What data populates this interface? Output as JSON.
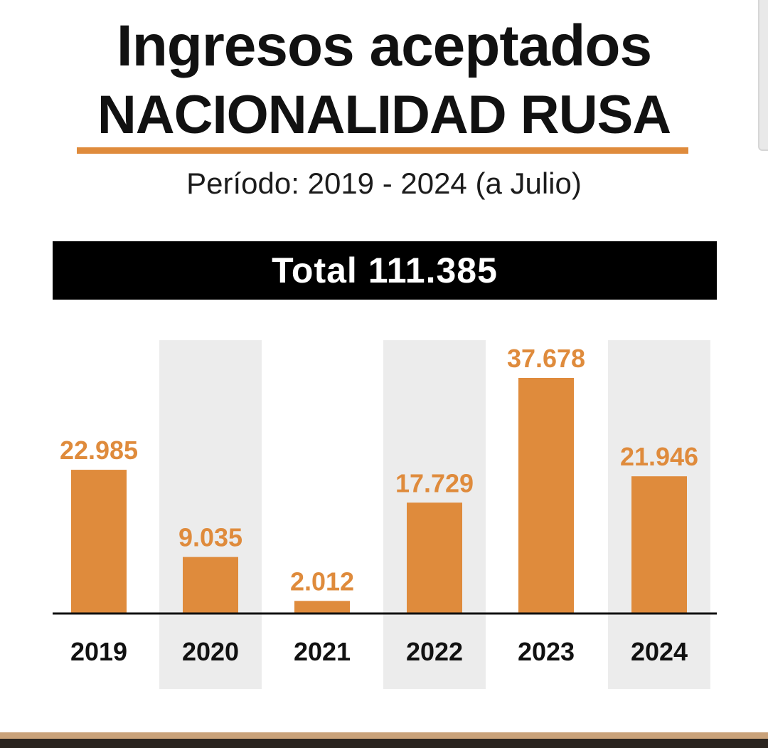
{
  "header": {
    "title_line1": "Ingresos aceptados",
    "title_line2": "NACIONALIDAD RUSA",
    "subtitle": "Período: 2019 - 2024 (a Julio)",
    "total_label": "Total 111.385"
  },
  "colors": {
    "accent": "#df8b3c",
    "bar": "#df8b3c",
    "label": "#df8b3c",
    "band": "#ececec",
    "axis": "#111111",
    "text": "#111111"
  },
  "chart_data": {
    "type": "bar",
    "categories": [
      "2019",
      "2020",
      "2021",
      "2022",
      "2023",
      "2024"
    ],
    "values": [
      22985,
      9035,
      2012,
      17729,
      37678,
      21946
    ],
    "value_labels": [
      "22.985",
      "9.035",
      "2.012",
      "17.729",
      "37.678",
      "21.946"
    ],
    "title": "Ingresos aceptados NACIONALIDAD RUSA",
    "subtitle": "Período: 2019 - 2024 (a Julio)",
    "xlabel": "",
    "ylabel": "",
    "ylim": [
      0,
      37678
    ],
    "grid": false,
    "legend": "none",
    "alternating_bands": [
      "2020",
      "2022",
      "2024"
    ]
  }
}
